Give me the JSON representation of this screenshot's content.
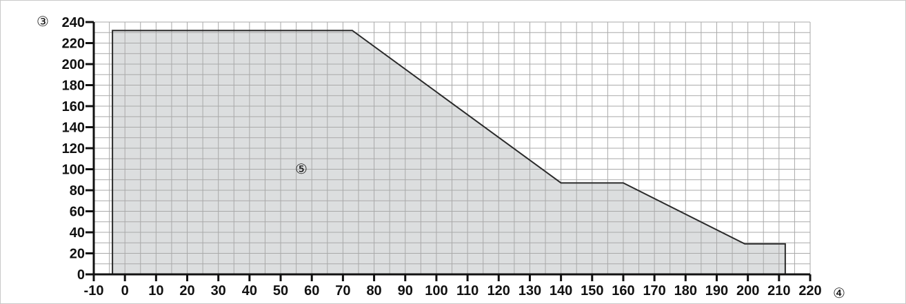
{
  "chart_data": {
    "type": "area",
    "title": "",
    "xlabel": "",
    "ylabel": "",
    "y_axis_marker": "③",
    "x_axis_marker": "④",
    "region_label": "⑤",
    "xlim": [
      -10,
      220
    ],
    "ylim": [
      0,
      240
    ],
    "x_ticks": [
      "-10",
      "0",
      "10",
      "20",
      "30",
      "40",
      "50",
      "60",
      "70",
      "80",
      "90",
      "100",
      "110",
      "120",
      "130",
      "140",
      "150",
      "160",
      "170",
      "180",
      "190",
      "200",
      "210",
      "220"
    ],
    "y_ticks": [
      "0",
      "20",
      "40",
      "60",
      "80",
      "100",
      "120",
      "140",
      "160",
      "180",
      "200",
      "220",
      "240"
    ],
    "x_tick_values": [
      -10,
      0,
      10,
      20,
      30,
      40,
      50,
      60,
      70,
      80,
      90,
      100,
      110,
      120,
      130,
      140,
      150,
      160,
      170,
      180,
      190,
      200,
      210,
      220
    ],
    "y_tick_values": [
      0,
      20,
      40,
      60,
      80,
      100,
      120,
      140,
      160,
      180,
      200,
      220,
      240
    ],
    "grid": true,
    "series": [
      {
        "points": [
          {
            "x": -4,
            "y": 0
          },
          {
            "x": -4,
            "y": 232
          },
          {
            "x": 73,
            "y": 232
          },
          {
            "x": 140,
            "y": 87
          },
          {
            "x": 160,
            "y": 87
          },
          {
            "x": 199,
            "y": 29
          },
          {
            "x": 212,
            "y": 29
          },
          {
            "x": 212,
            "y": 0
          }
        ]
      }
    ],
    "colors": {
      "fill": "#dcdedf",
      "line": "#2a2a2a",
      "grid": "#a9a9a9",
      "axis": "#111111"
    }
  }
}
